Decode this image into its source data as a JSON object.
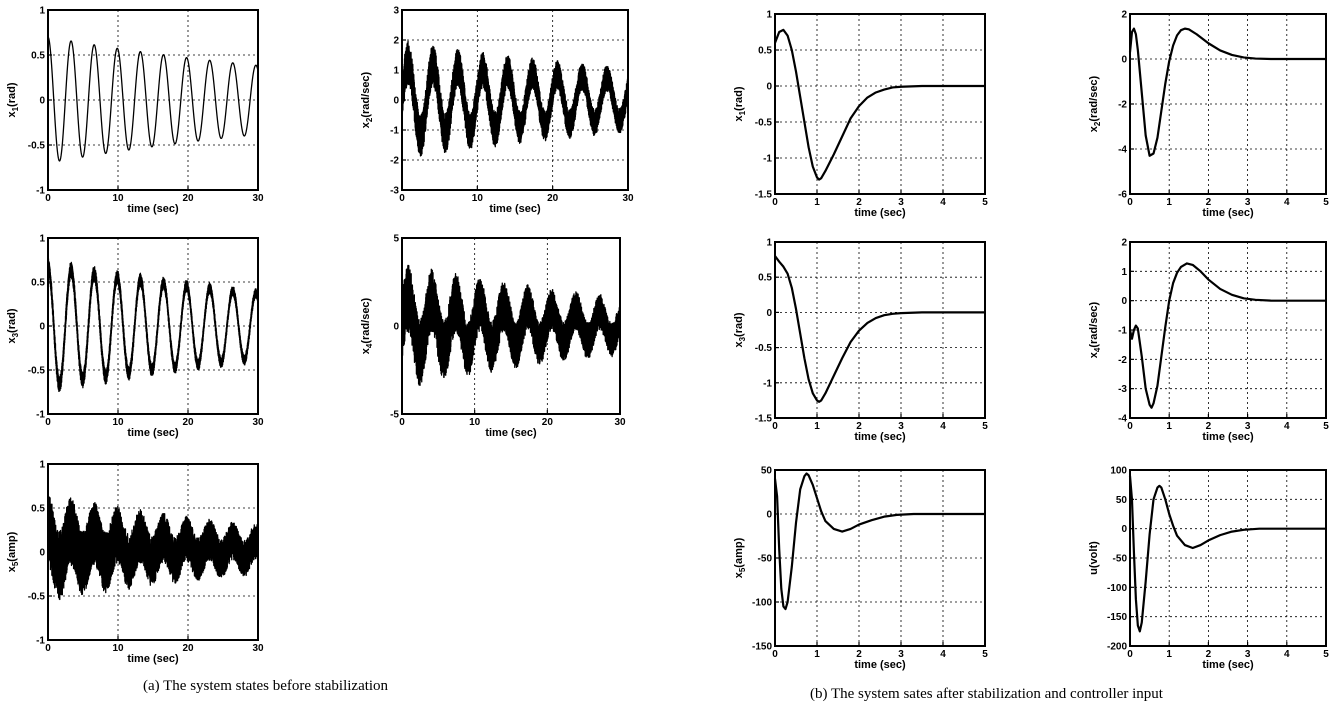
{
  "captions": {
    "a": "(a) The system states before stabilization",
    "b": "(b) The system sates after stabilization and controller input"
  },
  "chart_data": [
    {
      "type": "line",
      "group": "a",
      "ylabel": "x1(rad)",
      "ylabel_main": "x",
      "ylabel_sub": "1",
      "ylabel_rest": "(rad)",
      "xlabel": "time (sec)",
      "xlim": [
        0,
        30
      ],
      "ylim": [
        -1,
        1
      ],
      "xticks": [
        0,
        10,
        20,
        30
      ],
      "yticks": [
        -1,
        -0.5,
        0,
        0.5,
        1
      ],
      "grid": true,
      "series": [
        {
          "kind": "osc",
          "A0": 0.7,
          "decay": 0.02,
          "period": 3.3,
          "phase": 1.5708,
          "noise": 0.0,
          "offset": 0
        }
      ]
    },
    {
      "type": "line",
      "group": "a",
      "ylabel": "x2(rad/sec)",
      "ylabel_main": "x",
      "ylabel_sub": "2",
      "ylabel_rest": "(rad/sec)",
      "xlabel": "time (sec)",
      "xlim": [
        0,
        30
      ],
      "ylim": [
        -3,
        3
      ],
      "xticks": [
        0,
        10,
        20,
        30
      ],
      "yticks": [
        -3,
        -2,
        -1,
        0,
        1,
        2,
        3
      ],
      "grid": true,
      "series": [
        {
          "kind": "osc",
          "A0": 1.25,
          "decay": 0.02,
          "period": 3.3,
          "phase": 0,
          "noise": 0.75,
          "offset": 0
        }
      ]
    },
    {
      "type": "line",
      "group": "a",
      "ylabel": "x3(rad)",
      "ylabel_main": "x",
      "ylabel_sub": "3",
      "ylabel_rest": "(rad)",
      "xlabel": "time (sec)",
      "xlim": [
        0,
        30
      ],
      "ylim": [
        -1,
        1
      ],
      "xticks": [
        0,
        10,
        20,
        30
      ],
      "yticks": [
        -1,
        -0.5,
        0,
        0.5,
        1
      ],
      "grid": true,
      "series": [
        {
          "kind": "osc",
          "A0": 0.68,
          "decay": 0.02,
          "period": 3.3,
          "phase": 1.5708,
          "noise": 0.1,
          "offset": 0
        }
      ]
    },
    {
      "type": "line",
      "group": "a",
      "ylabel": "x4(rad/sec)",
      "ylabel_main": "x",
      "ylabel_sub": "4",
      "ylabel_rest": "(rad/sec)",
      "xlabel": "time (sec)",
      "xlim": [
        0,
        30
      ],
      "ylim": [
        -5,
        5
      ],
      "xticks": [
        0,
        10,
        20,
        30
      ],
      "yticks": [
        -5,
        0,
        5
      ],
      "grid": true,
      "series": [
        {
          "kind": "osc",
          "A0": 1.6,
          "decay": 0.025,
          "period": 3.3,
          "phase": 0,
          "noise": 2.0,
          "offset": 0
        }
      ]
    },
    {
      "type": "line",
      "group": "a",
      "ylabel": "x5(amp)",
      "ylabel_main": "x",
      "ylabel_sub": "5",
      "ylabel_rest": "(amp)",
      "xlabel": "time (sec)",
      "xlim": [
        0,
        30
      ],
      "ylim": [
        -1,
        1
      ],
      "xticks": [
        0,
        10,
        20,
        30
      ],
      "yticks": [
        -1,
        -0.5,
        0,
        0.5,
        1
      ],
      "grid": true,
      "series": [
        {
          "kind": "osc",
          "A0": 0.2,
          "decay": 0.025,
          "period": 3.3,
          "phase": 1.5708,
          "noise": 0.42,
          "offset": 0.05
        }
      ]
    },
    {
      "type": "line",
      "group": "b",
      "ylabel": "x1(rad)",
      "ylabel_main": "x",
      "ylabel_sub": "1",
      "ylabel_rest": "(rad)",
      "xlabel": "time (sec)",
      "xlim": [
        0,
        5
      ],
      "ylim": [
        -1.5,
        1
      ],
      "xticks": [
        0,
        1,
        2,
        3,
        4,
        5
      ],
      "yticks": [
        -1.5,
        -1,
        -0.5,
        0,
        0.5,
        1
      ],
      "grid": true,
      "series": [
        {
          "kind": "pts",
          "points": [
            [
              0,
              0.6
            ],
            [
              0.1,
              0.75
            ],
            [
              0.2,
              0.78
            ],
            [
              0.3,
              0.7
            ],
            [
              0.4,
              0.5
            ],
            [
              0.5,
              0.2
            ],
            [
              0.6,
              -0.15
            ],
            [
              0.7,
              -0.5
            ],
            [
              0.8,
              -0.85
            ],
            [
              0.9,
              -1.12
            ],
            [
              1.0,
              -1.27
            ],
            [
              1.05,
              -1.3
            ],
            [
              1.1,
              -1.28
            ],
            [
              1.2,
              -1.18
            ],
            [
              1.4,
              -0.95
            ],
            [
              1.6,
              -0.7
            ],
            [
              1.8,
              -0.45
            ],
            [
              2.0,
              -0.28
            ],
            [
              2.2,
              -0.16
            ],
            [
              2.4,
              -0.09
            ],
            [
              2.6,
              -0.05
            ],
            [
              2.8,
              -0.02
            ],
            [
              3.0,
              -0.01
            ],
            [
              3.5,
              0
            ],
            [
              5,
              0
            ]
          ]
        }
      ]
    },
    {
      "type": "line",
      "group": "b",
      "ylabel": "x2(rad/sec)",
      "ylabel_main": "x",
      "ylabel_sub": "2",
      "ylabel_rest": "(rad/sec)",
      "xlabel": "time (sec)",
      "xlim": [
        0,
        5
      ],
      "ylim": [
        -6,
        2
      ],
      "xticks": [
        0,
        1,
        2,
        3,
        4,
        5
      ],
      "yticks": [
        -6,
        -4,
        -2,
        0,
        2
      ],
      "grid": true,
      "series": [
        {
          "kind": "pts",
          "points": [
            [
              0,
              0.3
            ],
            [
              0.05,
              1.2
            ],
            [
              0.1,
              1.35
            ],
            [
              0.15,
              1.1
            ],
            [
              0.2,
              0.4
            ],
            [
              0.3,
              -1.5
            ],
            [
              0.4,
              -3.4
            ],
            [
              0.5,
              -4.3
            ],
            [
              0.6,
              -4.2
            ],
            [
              0.7,
              -3.5
            ],
            [
              0.8,
              -2.3
            ],
            [
              0.9,
              -1.1
            ],
            [
              1.0,
              -0.1
            ],
            [
              1.1,
              0.6
            ],
            [
              1.2,
              1.05
            ],
            [
              1.3,
              1.28
            ],
            [
              1.4,
              1.35
            ],
            [
              1.5,
              1.32
            ],
            [
              1.7,
              1.1
            ],
            [
              2.0,
              0.7
            ],
            [
              2.3,
              0.38
            ],
            [
              2.6,
              0.18
            ],
            [
              2.9,
              0.07
            ],
            [
              3.2,
              0.02
            ],
            [
              3.6,
              0
            ],
            [
              5,
              0
            ]
          ]
        }
      ]
    },
    {
      "type": "line",
      "group": "b",
      "ylabel": "x3(rad)",
      "ylabel_main": "x",
      "ylabel_sub": "3",
      "ylabel_rest": "(rad)",
      "xlabel": "time (sec)",
      "xlim": [
        0,
        5
      ],
      "ylim": [
        -1.5,
        1
      ],
      "xticks": [
        0,
        1,
        2,
        3,
        4,
        5
      ],
      "yticks": [
        -1.5,
        -1,
        -0.5,
        0,
        0.5,
        1
      ],
      "grid": true,
      "series": [
        {
          "kind": "pts",
          "points": [
            [
              0,
              0.8
            ],
            [
              0.1,
              0.72
            ],
            [
              0.2,
              0.65
            ],
            [
              0.3,
              0.55
            ],
            [
              0.4,
              0.35
            ],
            [
              0.5,
              0.05
            ],
            [
              0.6,
              -0.3
            ],
            [
              0.7,
              -0.65
            ],
            [
              0.8,
              -0.95
            ],
            [
              0.9,
              -1.15
            ],
            [
              1.0,
              -1.25
            ],
            [
              1.05,
              -1.27
            ],
            [
              1.1,
              -1.25
            ],
            [
              1.2,
              -1.15
            ],
            [
              1.4,
              -0.9
            ],
            [
              1.6,
              -0.65
            ],
            [
              1.8,
              -0.42
            ],
            [
              2.0,
              -0.26
            ],
            [
              2.2,
              -0.15
            ],
            [
              2.4,
              -0.08
            ],
            [
              2.6,
              -0.04
            ],
            [
              2.8,
              -0.02
            ],
            [
              3.0,
              -0.01
            ],
            [
              3.5,
              0
            ],
            [
              5,
              0
            ]
          ]
        }
      ]
    },
    {
      "type": "line",
      "group": "b",
      "ylabel": "x4(rad/sec)",
      "ylabel_main": "x",
      "ylabel_sub": "4",
      "ylabel_rest": "(rad/sec)",
      "xlabel": "time (sec)",
      "xlim": [
        0,
        5
      ],
      "ylim": [
        -4,
        2
      ],
      "xticks": [
        0,
        1,
        2,
        3,
        4,
        5
      ],
      "yticks": [
        -4,
        -3,
        -2,
        -1,
        0,
        1,
        2
      ],
      "grid": true,
      "series": [
        {
          "kind": "pts",
          "points": [
            [
              0,
              -1.0
            ],
            [
              0.05,
              -1.3
            ],
            [
              0.1,
              -1.0
            ],
            [
              0.15,
              -0.85
            ],
            [
              0.2,
              -0.95
            ],
            [
              0.3,
              -1.9
            ],
            [
              0.4,
              -3.0
            ],
            [
              0.5,
              -3.55
            ],
            [
              0.55,
              -3.65
            ],
            [
              0.6,
              -3.5
            ],
            [
              0.7,
              -2.9
            ],
            [
              0.8,
              -1.9
            ],
            [
              0.9,
              -0.9
            ],
            [
              1.0,
              0.0
            ],
            [
              1.1,
              0.6
            ],
            [
              1.2,
              0.95
            ],
            [
              1.3,
              1.15
            ],
            [
              1.45,
              1.27
            ],
            [
              1.6,
              1.22
            ],
            [
              1.8,
              1.0
            ],
            [
              2.0,
              0.72
            ],
            [
              2.3,
              0.4
            ],
            [
              2.6,
              0.2
            ],
            [
              2.9,
              0.08
            ],
            [
              3.2,
              0.03
            ],
            [
              3.6,
              0
            ],
            [
              5,
              0
            ]
          ]
        }
      ]
    },
    {
      "type": "line",
      "group": "b",
      "ylabel": "x5(amp)",
      "ylabel_main": "x",
      "ylabel_sub": "5",
      "ylabel_rest": "(amp)",
      "xlabel": "time (sec)",
      "xlim": [
        0,
        5
      ],
      "ylim": [
        -150,
        50
      ],
      "xticks": [
        0,
        1,
        2,
        3,
        4,
        5
      ],
      "yticks": [
        -150,
        -100,
        -50,
        0,
        50
      ],
      "grid": true,
      "series": [
        {
          "kind": "pts",
          "points": [
            [
              0,
              40
            ],
            [
              0.05,
              20
            ],
            [
              0.1,
              -40
            ],
            [
              0.15,
              -85
            ],
            [
              0.2,
              -105
            ],
            [
              0.25,
              -108
            ],
            [
              0.3,
              -100
            ],
            [
              0.4,
              -60
            ],
            [
              0.5,
              -10
            ],
            [
              0.6,
              28
            ],
            [
              0.7,
              43
            ],
            [
              0.75,
              46
            ],
            [
              0.8,
              44
            ],
            [
              0.9,
              33
            ],
            [
              1.0,
              18
            ],
            [
              1.1,
              3
            ],
            [
              1.2,
              -8
            ],
            [
              1.4,
              -17
            ],
            [
              1.6,
              -20
            ],
            [
              1.8,
              -17
            ],
            [
              2.0,
              -12
            ],
            [
              2.3,
              -7
            ],
            [
              2.6,
              -3
            ],
            [
              2.9,
              -1
            ],
            [
              3.3,
              0
            ],
            [
              5,
              0
            ]
          ]
        }
      ]
    },
    {
      "type": "line",
      "group": "b",
      "ylabel": "u(volt)",
      "ylabel_main": "u(volt)",
      "ylabel_sub": "",
      "ylabel_rest": "",
      "xlabel": "time (sec)",
      "xlim": [
        0,
        5
      ],
      "ylim": [
        -200,
        100
      ],
      "xticks": [
        0,
        1,
        2,
        3,
        4,
        5
      ],
      "yticks": [
        -200,
        -150,
        -100,
        -50,
        0,
        50,
        100
      ],
      "grid": true,
      "series": [
        {
          "kind": "pts",
          "points": [
            [
              0,
              90
            ],
            [
              0.05,
              50
            ],
            [
              0.1,
              -40
            ],
            [
              0.15,
              -120
            ],
            [
              0.2,
              -165
            ],
            [
              0.25,
              -175
            ],
            [
              0.3,
              -160
            ],
            [
              0.4,
              -90
            ],
            [
              0.5,
              -10
            ],
            [
              0.6,
              50
            ],
            [
              0.7,
              70
            ],
            [
              0.75,
              73
            ],
            [
              0.8,
              70
            ],
            [
              0.9,
              50
            ],
            [
              1.0,
              25
            ],
            [
              1.1,
              5
            ],
            [
              1.2,
              -12
            ],
            [
              1.4,
              -28
            ],
            [
              1.6,
              -33
            ],
            [
              1.8,
              -28
            ],
            [
              2.0,
              -20
            ],
            [
              2.3,
              -11
            ],
            [
              2.6,
              -5
            ],
            [
              2.9,
              -2
            ],
            [
              3.3,
              0
            ],
            [
              5,
              0
            ]
          ]
        }
      ]
    }
  ]
}
